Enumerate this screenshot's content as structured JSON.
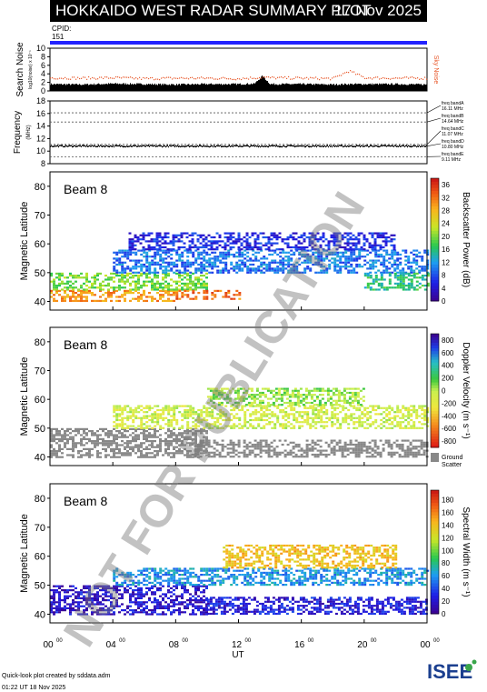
{
  "header": {
    "title": "HOKKAIDO WEST RADAR SUMMARY PLOT",
    "date": "17 Nov 2025",
    "cpid_label": "CPID:",
    "cpid_value": "151"
  },
  "footer": {
    "created_by": "Quick-look plot created by sddata.adm",
    "created_at": "01:22 UT 18 Nov 2025",
    "logo": "ISEE"
  },
  "watermark": "NOT FOR PUBLICATION",
  "colors": {
    "title_bg": "#000000",
    "cpid_bar": "#2222ff",
    "sky_noise": "#e8582a",
    "search_noise": "#000000",
    "ground_scatter": "#888888"
  },
  "chart_data": [
    {
      "type": "bar",
      "panel": "noise",
      "ylabel": "Search Noise",
      "ylabel_sub": "log10(noise) x 10⁻¹",
      "right_label": "Sky Noise",
      "yticks": [
        0,
        2,
        4,
        6,
        8,
        10
      ],
      "ylim": [
        0,
        10
      ],
      "x_hours": [
        0,
        2,
        4,
        6,
        8,
        10,
        12,
        13,
        13.5,
        14,
        16,
        18,
        19,
        20,
        22,
        24
      ],
      "search_noise": [
        1.6,
        1.5,
        1.7,
        1.6,
        1.5,
        1.6,
        1.6,
        1.7,
        3.5,
        1.6,
        1.6,
        1.5,
        1.6,
        1.6,
        1.6,
        1.5
      ],
      "sky_noise": [
        3.2,
        3.1,
        3.2,
        3.0,
        3.1,
        3.1,
        3.0,
        3.2,
        3.3,
        3.2,
        3.1,
        3.0,
        4.8,
        3.2,
        3.1,
        3.1
      ]
    },
    {
      "type": "line",
      "panel": "frequency",
      "ylabel": "Frequency",
      "ylabel_sub": "(MHz)",
      "yticks": [
        8,
        10,
        12,
        14,
        16,
        18
      ],
      "ylim": [
        8,
        18
      ],
      "bands": [
        {
          "name": "freq bandA",
          "freq_label": "16.11 MHz",
          "value": 16.11
        },
        {
          "name": "freq bandB",
          "freq_label": "14.64 MHz",
          "value": 14.64
        },
        {
          "name": "freq bandC",
          "freq_label": "11.07 MHz",
          "value": 11.07
        },
        {
          "name": "freq bandD",
          "freq_label": "10.80 MHz",
          "value": 10.8
        },
        {
          "name": "freq bandE",
          "freq_label": "9.11 MHz",
          "value": 9.11
        }
      ],
      "operating_frequency": 10.8
    },
    {
      "type": "heatmap",
      "panel": "power",
      "beam_label": "Beam  8",
      "ylabel": "Magnetic Latitude",
      "yticks": [
        40,
        50,
        60,
        70,
        80
      ],
      "ylim": [
        37,
        85
      ],
      "colorbar_label": "Backscatter Power (dB)",
      "colorbar_ticks": [
        0,
        4,
        8,
        12,
        16,
        20,
        24,
        28,
        32,
        36
      ],
      "colorbar_range": [
        0,
        38
      ],
      "regions": [
        {
          "t0": 0,
          "t1": 8,
          "lat0": 40,
          "lat1": 44,
          "value": 30
        },
        {
          "t0": 0,
          "t1": 10,
          "lat0": 44,
          "lat1": 50,
          "value": 20
        },
        {
          "t0": 8,
          "t1": 12,
          "lat0": 41,
          "lat1": 44,
          "value": 32
        },
        {
          "t0": 4,
          "t1": 24,
          "lat0": 50,
          "lat1": 58,
          "value": 10
        },
        {
          "t0": 20,
          "t1": 24,
          "lat0": 44,
          "lat1": 50,
          "value": 16
        },
        {
          "t0": 5,
          "t1": 22,
          "lat0": 58,
          "lat1": 64,
          "value": 6
        }
      ]
    },
    {
      "type": "heatmap",
      "panel": "velocity",
      "beam_label": "Beam  8",
      "ylabel": "Magnetic Latitude",
      "yticks": [
        40,
        50,
        60,
        70,
        80
      ],
      "ylim": [
        37,
        85
      ],
      "colorbar_label": "Doppler Velocity (m s⁻¹)",
      "colorbar_ticks": [
        -800,
        -600,
        -400,
        -200,
        0,
        200,
        400,
        600,
        800
      ],
      "colorbar_range": [
        -900,
        900
      ],
      "ground_scatter_label": [
        "Ground",
        "Scatter"
      ],
      "regions": [
        {
          "t0": 0,
          "t1": 10,
          "lat0": 40,
          "lat1": 50,
          "value": "gs"
        },
        {
          "t0": 9,
          "t1": 24,
          "lat0": 40,
          "lat1": 46,
          "value": "gs"
        },
        {
          "t0": 4,
          "t1": 24,
          "lat0": 50,
          "lat1": 58,
          "value": -80
        },
        {
          "t0": 10,
          "t1": 20,
          "lat0": 58,
          "lat1": 64,
          "value": 50
        }
      ]
    },
    {
      "type": "heatmap",
      "panel": "width",
      "beam_label": "Beam  8",
      "ylabel": "Magnetic Latitude",
      "yticks": [
        40,
        50,
        60,
        70,
        80
      ],
      "ylim": [
        37,
        85
      ],
      "colorbar_label": "Spectral Width (m s⁻¹)",
      "colorbar_ticks": [
        0,
        20,
        40,
        60,
        80,
        100,
        120,
        140,
        160,
        180
      ],
      "colorbar_range": [
        0,
        195
      ],
      "regions": [
        {
          "t0": 0,
          "t1": 10,
          "lat0": 40,
          "lat1": 50,
          "value": 20
        },
        {
          "t0": 10,
          "t1": 24,
          "lat0": 40,
          "lat1": 46,
          "value": 25
        },
        {
          "t0": 4,
          "t1": 24,
          "lat0": 50,
          "lat1": 56,
          "value": 60
        },
        {
          "t0": 11,
          "t1": 22,
          "lat0": 56,
          "lat1": 64,
          "value": 140
        }
      ]
    }
  ],
  "x_axis": {
    "label": "UT",
    "ticks": [
      {
        "hour": 0,
        "label": "00",
        "sup": "00"
      },
      {
        "hour": 4,
        "label": "04",
        "sup": "00"
      },
      {
        "hour": 8,
        "label": "08",
        "sup": "00"
      },
      {
        "hour": 12,
        "label": "12",
        "sup": "00"
      },
      {
        "hour": 16,
        "label": "16",
        "sup": "00"
      },
      {
        "hour": 20,
        "label": "20",
        "sup": "00"
      },
      {
        "hour": 24,
        "label": "00",
        "sup": "00"
      }
    ]
  }
}
